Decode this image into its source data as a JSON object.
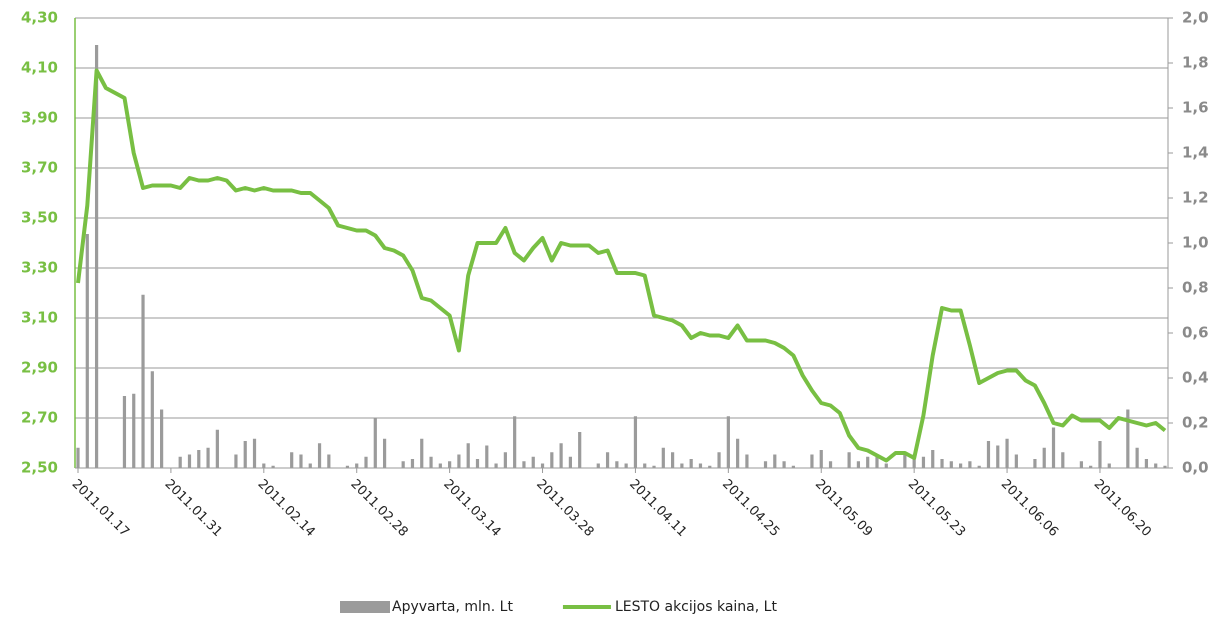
{
  "chart_data": {
    "type": "combo",
    "categories": [
      "2011.01.17",
      null,
      null,
      null,
      null,
      null,
      null,
      null,
      null,
      null,
      "2011.01.31",
      null,
      null,
      null,
      null,
      null,
      null,
      null,
      null,
      null,
      "2011.02.14",
      null,
      null,
      null,
      null,
      null,
      null,
      null,
      null,
      null,
      "2011.02.28",
      null,
      null,
      null,
      null,
      null,
      null,
      null,
      null,
      null,
      "2011.03.14",
      null,
      null,
      null,
      null,
      null,
      null,
      null,
      null,
      null,
      "2011.03.28",
      null,
      null,
      null,
      null,
      null,
      null,
      null,
      null,
      null,
      "2011.04.11",
      null,
      null,
      null,
      null,
      null,
      null,
      null,
      null,
      null,
      "2011.04.25",
      null,
      null,
      null,
      null,
      null,
      null,
      null,
      null,
      null,
      "2011.05.09",
      null,
      null,
      null,
      null,
      null,
      null,
      null,
      null,
      null,
      "2011.05.23",
      null,
      null,
      null,
      null,
      null,
      null,
      null,
      null,
      null,
      "2011.06.06",
      null,
      null,
      null,
      null,
      null,
      null,
      null,
      null,
      null,
      "2011.06.20",
      null,
      null,
      null,
      null,
      null,
      null,
      null
    ],
    "series": [
      {
        "name": "Apyvarta, mln. Lt",
        "type": "bar",
        "axis": "y2",
        "color": "#9b9b9b",
        "values": [
          0.09,
          1.04,
          1.88,
          0,
          0,
          0.32,
          0.33,
          0.77,
          0.43,
          0.26,
          0,
          0.05,
          0.06,
          0.08,
          0.09,
          0.17,
          0,
          0.06,
          0.12,
          0.13,
          0.02,
          0.01,
          0,
          0.07,
          0.06,
          0.02,
          0.11,
          0.06,
          0,
          0.01,
          0.02,
          0.05,
          0.22,
          0.13,
          0,
          0.03,
          0.04,
          0.13,
          0.05,
          0.02,
          0.03,
          0.06,
          0.11,
          0.04,
          0.1,
          0.02,
          0.07,
          0.23,
          0.03,
          0.05,
          0.02,
          0.07,
          0.11,
          0.05,
          0.16,
          0,
          0.02,
          0.07,
          0.03,
          0.02,
          0.23,
          0.02,
          0.01,
          0.09,
          0.07,
          0.02,
          0.04,
          0.02,
          0.01,
          0.07,
          0.23,
          0.13,
          0.06,
          0,
          0.03,
          0.06,
          0.03,
          0.01,
          0,
          0.06,
          0.08,
          0.03,
          0,
          0.07,
          0.03,
          0.05,
          0.05,
          0.02,
          0,
          0.06,
          0.06,
          0.05,
          0.08,
          0.04,
          0.03,
          0.02,
          0.03,
          0.01,
          0.12,
          0.1,
          0.13,
          0.06,
          0,
          0.04,
          0.09,
          0.18,
          0.07,
          0,
          0.03,
          0.01,
          0.12,
          0.02,
          0,
          0.26,
          0.09,
          0.04,
          0.02,
          0.01
        ]
      },
      {
        "name": "LESTO akcijos kaina, Lt",
        "type": "line",
        "axis": "y",
        "color": "#78bf43",
        "values": [
          3.24,
          3.55,
          4.09,
          4.02,
          4.0,
          3.98,
          3.76,
          3.62,
          3.63,
          3.63,
          3.63,
          3.62,
          3.66,
          3.65,
          3.65,
          3.66,
          3.65,
          3.61,
          3.62,
          3.61,
          3.62,
          3.61,
          3.61,
          3.61,
          3.6,
          3.6,
          3.57,
          3.54,
          3.47,
          3.46,
          3.45,
          3.45,
          3.43,
          3.38,
          3.37,
          3.35,
          3.29,
          3.18,
          3.17,
          3.14,
          3.11,
          2.97,
          3.27,
          3.4,
          3.4,
          3.4,
          3.46,
          3.36,
          3.33,
          3.38,
          3.42,
          3.33,
          3.4,
          3.39,
          3.39,
          3.39,
          3.36,
          3.37,
          3.28,
          3.28,
          3.28,
          3.27,
          3.11,
          3.1,
          3.09,
          3.07,
          3.02,
          3.04,
          3.03,
          3.03,
          3.02,
          3.07,
          3.01,
          3.01,
          3.01,
          3.0,
          2.98,
          2.95,
          2.87,
          2.81,
          2.76,
          2.75,
          2.72,
          2.63,
          2.58,
          2.57,
          2.55,
          2.53,
          2.56,
          2.56,
          2.54,
          2.71,
          2.95,
          3.14,
          3.13,
          3.13,
          2.99,
          2.84,
          2.86,
          2.88,
          2.89,
          2.89,
          2.85,
          2.83,
          2.76,
          2.68,
          2.67,
          2.71,
          2.69,
          2.69,
          2.69,
          2.66,
          2.7,
          2.69,
          2.68,
          2.67,
          2.68,
          2.65
        ]
      }
    ],
    "ylim": [
      2.5,
      4.3
    ],
    "yticks": [
      {
        "value": 2.5,
        "label": "2,50"
      },
      {
        "value": 2.7,
        "label": "2,70"
      },
      {
        "value": 2.9,
        "label": "2,90"
      },
      {
        "value": 3.1,
        "label": "3,10"
      },
      {
        "value": 3.3,
        "label": "3,30"
      },
      {
        "value": 3.5,
        "label": "3,50"
      },
      {
        "value": 3.7,
        "label": "3,70"
      },
      {
        "value": 3.9,
        "label": "3,90"
      },
      {
        "value": 4.1,
        "label": "4,10"
      },
      {
        "value": 4.3,
        "label": "4,30"
      }
    ],
    "y2lim": [
      0,
      2
    ],
    "y2ticks": [
      {
        "value": 0,
        "label": "0,0"
      },
      {
        "value": 0.2,
        "label": "0,2"
      },
      {
        "value": 0.4,
        "label": "0,4"
      },
      {
        "value": 0.6,
        "label": "0,6"
      },
      {
        "value": 0.8,
        "label": "0,8"
      },
      {
        "value": 1.0,
        "label": "1,0"
      },
      {
        "value": 1.2,
        "label": "1,2"
      },
      {
        "value": 1.4,
        "label": "1,4"
      },
      {
        "value": 1.6,
        "label": "1,6"
      },
      {
        "value": 1.8,
        "label": "1,8"
      },
      {
        "value": 2.0,
        "label": "2,0"
      }
    ],
    "grid": true,
    "legend": "bottom"
  }
}
